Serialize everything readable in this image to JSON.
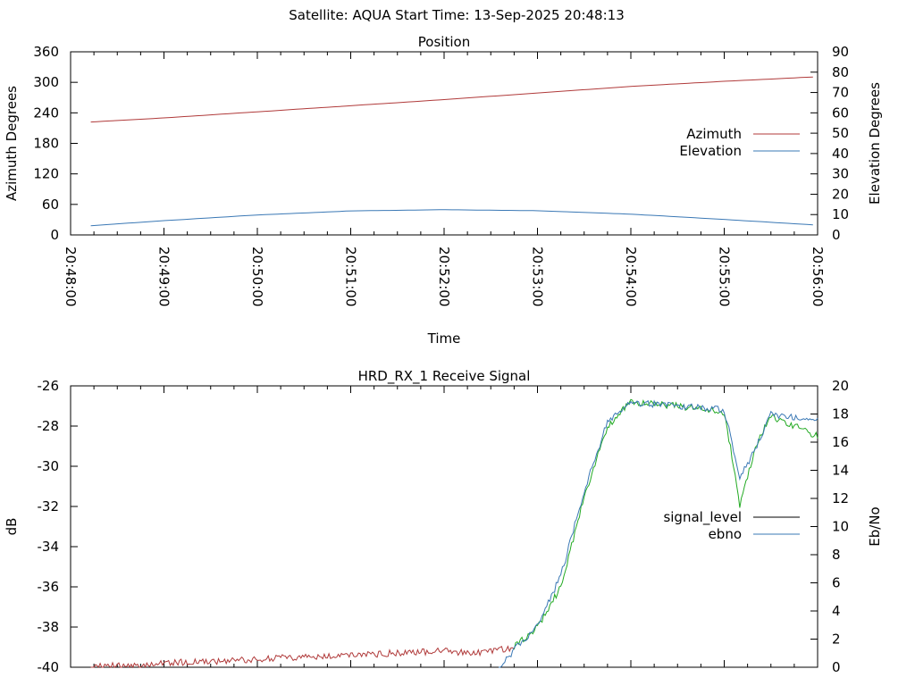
{
  "header": {
    "title": "Satellite: AQUA     Start Time: 13-Sep-2025 20:48:13"
  },
  "chart_data": [
    {
      "type": "line",
      "title": "Position",
      "xlabel": "Time",
      "ylabel": "Azimuth Degrees",
      "y2label": "Elevation Degrees",
      "x_ticks": [
        "20:48:00",
        "20:49:00",
        "20:50:00",
        "20:51:00",
        "20:52:00",
        "20:53:00",
        "20:54:00",
        "20:55:00",
        "20:56:00"
      ],
      "xlim": [
        "20:48:00",
        "20:56:00"
      ],
      "ylim": [
        0,
        360
      ],
      "y_ticks": [
        0,
        60,
        120,
        180,
        240,
        300,
        360
      ],
      "y2lim": [
        0,
        90
      ],
      "y2_ticks": [
        0,
        10,
        20,
        30,
        40,
        50,
        60,
        70,
        80,
        90
      ],
      "legend_position": "right",
      "series": [
        {
          "name": "Azimuth",
          "axis": "left",
          "color": "#b03a3a",
          "x": [
            "20:48:13",
            "20:49:00",
            "20:50:00",
            "20:51:00",
            "20:52:00",
            "20:53:00",
            "20:54:00",
            "20:55:00",
            "20:56:00"
          ],
          "values": [
            222,
            230,
            242,
            254,
            266,
            279,
            292,
            302,
            311
          ]
        },
        {
          "name": "Elevation",
          "axis": "right",
          "color": "#3a78b5",
          "x": [
            "20:48:13",
            "20:49:00",
            "20:50:00",
            "20:51:00",
            "20:52:00",
            "20:53:00",
            "20:54:00",
            "20:55:00",
            "20:56:00"
          ],
          "values": [
            4.5,
            7.0,
            9.8,
            11.8,
            12.4,
            11.9,
            10.2,
            7.6,
            4.8
          ]
        }
      ]
    },
    {
      "type": "line",
      "title": "HRD_RX_1 Receive Signal",
      "xlabel": "",
      "ylabel": "dB",
      "y2label": "Eb/No",
      "xlim": [
        "20:48:00",
        "20:56:00"
      ],
      "ylim": [
        -40,
        -26
      ],
      "y_ticks": [
        -40,
        -38,
        -36,
        -34,
        -32,
        -30,
        -28,
        -26
      ],
      "y2lim": [
        0,
        20
      ],
      "y2_ticks": [
        0,
        2,
        4,
        6,
        8,
        10,
        12,
        14,
        16,
        18,
        20
      ],
      "legend_position": "right",
      "series": [
        {
          "name": "signal_level",
          "axis": "left",
          "color": "#000000",
          "line_colors": {
            "low": "#b03a3a",
            "high": "#22aa22"
          },
          "x": [
            "20:48:13",
            "20:49:00",
            "20:50:00",
            "20:51:00",
            "20:52:00",
            "20:52:20",
            "20:52:45",
            "20:53:00",
            "20:53:15",
            "20:53:30",
            "20:53:45",
            "20:54:00",
            "20:54:30",
            "20:55:00",
            "20:55:05",
            "20:55:10",
            "20:55:20",
            "20:55:30",
            "20:56:00"
          ],
          "values": [
            -40.0,
            -39.8,
            -39.6,
            -39.4,
            -39.2,
            -39.3,
            -39.0,
            -38.0,
            -36.0,
            -31.5,
            -28.0,
            -26.8,
            -27.0,
            -27.3,
            -29.5,
            -32.0,
            -29.0,
            -27.5,
            -28.5
          ]
        },
        {
          "name": "ebno",
          "axis": "right",
          "color": "#3a78b5",
          "x": [
            "20:52:35",
            "20:52:45",
            "20:53:00",
            "20:53:15",
            "20:53:30",
            "20:53:45",
            "20:54:00",
            "20:54:30",
            "20:55:00",
            "20:55:05",
            "20:55:10",
            "20:55:20",
            "20:55:30",
            "20:56:00"
          ],
          "values": [
            0.0,
            1.2,
            3.0,
            6.5,
            12.5,
            17.5,
            18.8,
            18.6,
            18.3,
            16.0,
            13.5,
            15.5,
            18.0,
            17.5
          ]
        }
      ]
    }
  ]
}
